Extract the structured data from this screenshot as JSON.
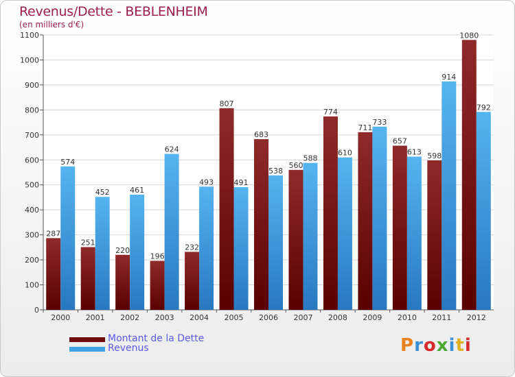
{
  "header": {
    "title": "Revenus/Dette - BEBLENHEIM",
    "subtitle": "(en milliers d'€)"
  },
  "legend": {
    "items": [
      {
        "label": "Montant de la Dette",
        "color": "#7a1010"
      },
      {
        "label": "Revenus",
        "color": "#3fa0e4"
      }
    ]
  },
  "logo": {
    "text": "Proxiti",
    "colors": [
      "#e8821e",
      "#3b8fd4",
      "#d62a2a",
      "#4aa832",
      "#3b8fd4",
      "#e0b020",
      "#d62a2a"
    ]
  },
  "chart_data": {
    "type": "bar",
    "title": "Revenus/Dette - BEBLENHEIM",
    "subtitle": "(en milliers d'€)",
    "categories": [
      "2000",
      "2001",
      "2002",
      "2003",
      "2004",
      "2005",
      "2006",
      "2007",
      "2008",
      "2009",
      "2010",
      "2011",
      "2012"
    ],
    "series": [
      {
        "name": "Montant de la Dette",
        "color": "#7a1010",
        "values": [
          287,
          251,
          220,
          196,
          232,
          807,
          683,
          560,
          774,
          711,
          657,
          598,
          1080
        ]
      },
      {
        "name": "Revenus",
        "color": "#3fa0e4",
        "values": [
          574,
          452,
          461,
          624,
          493,
          491,
          538,
          588,
          610,
          733,
          613,
          914,
          792
        ]
      }
    ],
    "ylim": [
      0,
      1100
    ],
    "yticks": [
      0,
      100,
      200,
      300,
      400,
      500,
      600,
      700,
      800,
      900,
      1000,
      1100
    ],
    "grid": true,
    "legend_position": "bottom-left"
  }
}
